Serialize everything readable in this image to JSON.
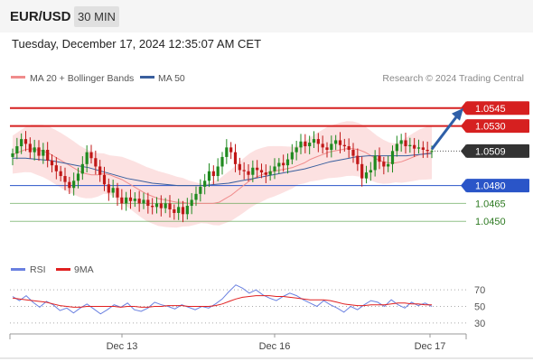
{
  "header": {
    "symbol": "EUR/USD",
    "interval": "30 MIN",
    "timestamp": "Tuesday, December 17, 2024 12:35:07 AM CET"
  },
  "legend": {
    "ma20": {
      "label": "MA 20 + Bollinger Bands",
      "color": "#f08c8c"
    },
    "ma50": {
      "label": "MA 50",
      "color": "#3a5f9e"
    },
    "credit": "Research © 2024 Trading Central"
  },
  "rsi_legend": {
    "rsi": {
      "label": "RSI",
      "color": "#6a80e0"
    },
    "ma9": {
      "label": "9MA",
      "color": "#e02020"
    }
  },
  "chart_data": [
    {
      "type": "candlestick",
      "title": "",
      "x_ticks": [
        "Dec 13",
        "Dec 16",
        "Dec 17"
      ],
      "ylim": [
        1.0435,
        1.056
      ],
      "current_price": 1.0509,
      "levels": [
        {
          "value": 1.0545,
          "label": "1.0545",
          "kind": "resistance",
          "color": "#d62020"
        },
        {
          "value": 1.053,
          "label": "1.0530",
          "kind": "resistance",
          "color": "#d62020"
        },
        {
          "value": 1.0509,
          "label": "1.0509",
          "kind": "last",
          "color": "#333333"
        },
        {
          "value": 1.048,
          "label": "1.0480",
          "kind": "support",
          "color": "#2a55c8"
        },
        {
          "value": 1.0465,
          "label": "1.0465",
          "kind": "support",
          "color": "#4a9a3a"
        },
        {
          "value": 1.045,
          "label": "1.0450",
          "kind": "support",
          "color": "#4a9a3a"
        }
      ],
      "closes": [
        1.0507,
        1.0513,
        1.0519,
        1.0515,
        1.0508,
        1.0512,
        1.0505,
        1.051,
        1.0501,
        1.0497,
        1.0492,
        1.0488,
        1.0483,
        1.0478,
        1.0484,
        1.049,
        1.0498,
        1.0508,
        1.0503,
        1.0496,
        1.0489,
        1.0481,
        1.0474,
        1.0478,
        1.047,
        1.0465,
        1.047,
        1.0467,
        1.0469,
        1.0465,
        1.0468,
        1.0463,
        1.0462,
        1.0465,
        1.0461,
        1.0465,
        1.046,
        1.0457,
        1.0462,
        1.0456,
        1.0463,
        1.0468,
        1.0473,
        1.0479,
        1.0484,
        1.0492,
        1.0488,
        1.0496,
        1.0504,
        1.0512,
        1.0508,
        1.0498,
        1.0493,
        1.0492,
        1.0489,
        1.0495,
        1.0493,
        1.0491,
        1.0489,
        1.0492,
        1.0496,
        1.0499,
        1.0497,
        1.0502,
        1.0508,
        1.0512,
        1.0517,
        1.0513,
        1.0516,
        1.0519,
        1.0515,
        1.0512,
        1.051,
        1.0515,
        1.0518,
        1.0514,
        1.0513,
        1.051,
        1.0505,
        1.0498,
        1.0486,
        1.0491,
        1.0493,
        1.0505,
        1.05,
        1.0496,
        1.0498,
        1.0509,
        1.0515,
        1.0518,
        1.0513,
        1.0514,
        1.0511,
        1.0512,
        1.051,
        1.0509,
        1.0509
      ],
      "ma20": [
        1.0506,
        1.0508,
        1.051,
        1.0511,
        1.051,
        1.0509,
        1.0507,
        1.0504,
        1.0501,
        1.0498,
        1.0495,
        1.0492,
        1.049,
        1.0489,
        1.0489,
        1.049,
        1.0489,
        1.0487,
        1.0485,
        1.0482,
        1.0479,
        1.0476,
        1.0473,
        1.0471,
        1.0469,
        1.0468,
        1.0467,
        1.0466,
        1.0466,
        1.0465,
        1.0465,
        1.0465,
        1.0465,
        1.0465,
        1.0466,
        1.0469,
        1.0472,
        1.0476,
        1.048,
        1.0484,
        1.0487,
        1.0489,
        1.0491,
        1.0492,
        1.0493,
        1.0494,
        1.0495,
        1.0497,
        1.0499,
        1.0502,
        1.0504,
        1.0506,
        1.0508,
        1.0509,
        1.051,
        1.0511,
        1.0511,
        1.051,
        1.0508,
        1.0505,
        1.0502,
        1.05,
        1.0499,
        1.0499,
        1.05,
        1.0502,
        1.0504,
        1.0506,
        1.0507,
        1.0508
      ],
      "ma50": [
        1.0503,
        1.0503,
        1.0502,
        1.0501,
        1.0499,
        1.0497,
        1.0495,
        1.0492,
        1.0489,
        1.0486,
        1.0484,
        1.0482,
        1.0481,
        1.048,
        1.048,
        1.048,
        1.0481,
        1.0482,
        1.0484,
        1.0486,
        1.0488,
        1.049,
        1.0492,
        1.0494,
        1.0497,
        1.05,
        1.0502,
        1.0504,
        1.0505,
        1.0505,
        1.0505,
        1.0505,
        1.0506,
        1.0507
      ]
    },
    {
      "type": "line",
      "title": "",
      "ylim": [
        20,
        80
      ],
      "y_ticks": [
        70,
        50,
        30
      ],
      "series": [
        {
          "name": "RSI",
          "values": [
            62,
            57,
            63,
            55,
            49,
            56,
            52,
            45,
            48,
            42,
            48,
            53,
            47,
            41,
            46,
            52,
            49,
            54,
            46,
            44,
            48,
            55,
            52,
            50,
            47,
            52,
            49,
            46,
            50,
            48,
            53,
            59,
            68,
            76,
            72,
            66,
            70,
            64,
            60,
            57,
            62,
            66,
            63,
            58,
            54,
            50,
            57,
            52,
            48,
            43,
            50,
            46,
            52,
            57,
            55,
            50,
            58,
            52,
            48,
            55,
            51,
            54,
            50
          ]
        },
        {
          "name": "9MA",
          "values": [
            60,
            59,
            58,
            57,
            56,
            55,
            53,
            51,
            50,
            49,
            49,
            50,
            50,
            50,
            50,
            50,
            49,
            50,
            50,
            49,
            49,
            50,
            50,
            51,
            51,
            51,
            50,
            50,
            50,
            50,
            51,
            53,
            56,
            59,
            61,
            62,
            63,
            63,
            63,
            62,
            62,
            61,
            60,
            59,
            58,
            58,
            58,
            57,
            55,
            53,
            52,
            51,
            51,
            52,
            52,
            52,
            53,
            54,
            54,
            53,
            53,
            52,
            52
          ]
        }
      ]
    }
  ]
}
